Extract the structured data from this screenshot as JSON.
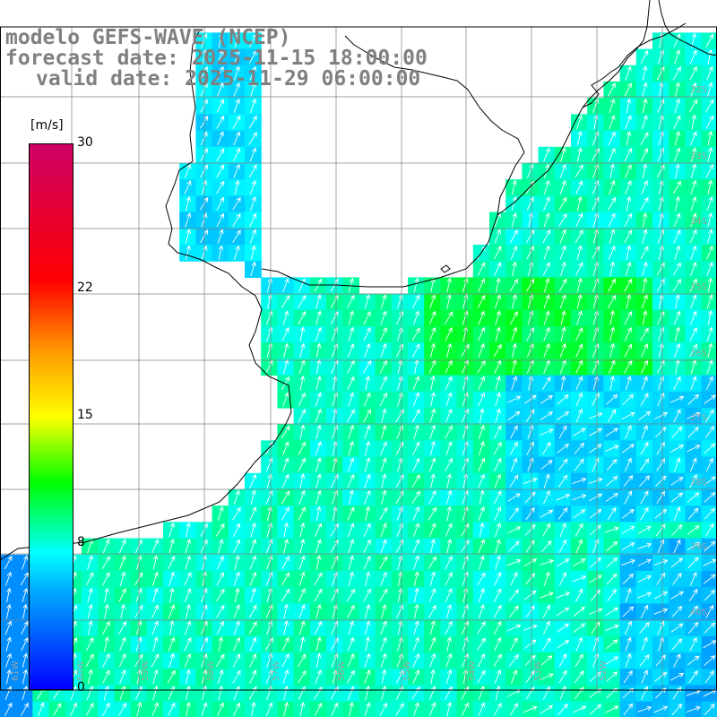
{
  "title": {
    "line1": "modelo GEFS-WAVE (NCEP)",
    "line2": "forecast date: 2025-11-15 18:00:00",
    "line3": "valid date: 2025-11-29 06:00:00"
  },
  "colorbar": {
    "unit": "[m/s]",
    "ticks": [
      {
        "value": 30,
        "label": "30"
      },
      {
        "value": 22,
        "label": "22"
      },
      {
        "value": 15,
        "label": "15"
      },
      {
        "value": 8,
        "label": "8"
      },
      {
        "value": 0,
        "label": "0"
      }
    ],
    "min": 0,
    "max": 30
  },
  "lat_labels": [
    "32S",
    "33S",
    "34S",
    "35S",
    "36S",
    "37S",
    "38S",
    "39S",
    "40S"
  ],
  "lon_labels": [
    "61W",
    "60W",
    "59W",
    "58W",
    "57W",
    "56W",
    "55W",
    "54W",
    "53W",
    "52W"
  ],
  "colors": {
    "land": "#ffffff",
    "grid": "#808080",
    "coast": "#000000",
    "arrow": "#ffffff",
    "title": "#808080"
  }
}
